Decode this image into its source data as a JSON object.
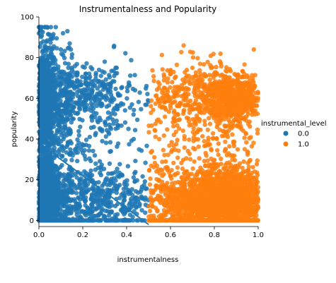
{
  "chart_data": {
    "type": "scatter",
    "title": "Instrumentalness and Popularity",
    "xlabel": "instrumentalness",
    "ylabel": "popularity",
    "xlim": [
      0,
      1
    ],
    "ylim": [
      -3,
      100
    ],
    "x_ticks": [
      0.0,
      0.2,
      0.4,
      0.6,
      0.8,
      1.0
    ],
    "x_tick_labels": [
      "0.0",
      "0.2",
      "0.4",
      "0.6",
      "0.8",
      "1.0"
    ],
    "y_ticks": [
      0,
      20,
      40,
      60,
      80,
      100
    ],
    "y_tick_labels": [
      "0",
      "20",
      "40",
      "60",
      "80",
      "100"
    ],
    "grid": false,
    "legend": {
      "title": "instrumental_level",
      "placement": "right",
      "entries": [
        "0.0",
        "1.0"
      ]
    },
    "colors": {
      "0.0": "#1f77b4",
      "1.0": "#ff7f0e"
    },
    "series": [
      {
        "name": "0.0",
        "x_range": [
          0,
          0.5
        ],
        "regression_line": {
          "x": [
            0.0,
            0.5
          ],
          "y": [
            38,
            -2
          ]
        },
        "clusters": [
          {
            "x_center": 0.02,
            "x_spread": 0.03,
            "y_center": 55,
            "y_spread": 17,
            "count": 900
          },
          {
            "x_center": 0.02,
            "x_spread": 0.03,
            "y_center": 10,
            "y_spread": 10,
            "count": 700
          },
          {
            "x_center": 0.2,
            "x_spread": 0.14,
            "y_center": 62,
            "y_spread": 8,
            "count": 420
          },
          {
            "x_center": 0.22,
            "x_spread": 0.15,
            "y_center": 10,
            "y_spread": 9,
            "count": 650
          },
          {
            "x_center": 0.2,
            "x_spread": 0.14,
            "y_center": 40,
            "y_spread": 10,
            "count": 120
          }
        ],
        "extra_points": [
          [
            0.0,
            95
          ],
          [
            0.0,
            92
          ],
          [
            0.13,
            93
          ],
          [
            0.05,
            85
          ],
          [
            0.1,
            84
          ],
          [
            0.15,
            80
          ],
          [
            0.3,
            78
          ],
          [
            0.35,
            75
          ],
          [
            0.02,
            88
          ]
        ]
      },
      {
        "name": "1.0",
        "x_range": [
          0.5,
          1.0
        ],
        "regression_line": null,
        "clusters": [
          {
            "x_center": 0.88,
            "x_spread": 0.07,
            "y_center": 60,
            "y_spread": 6,
            "count": 700
          },
          {
            "x_center": 0.85,
            "x_spread": 0.1,
            "y_center": 10,
            "y_spread": 8,
            "count": 1600
          },
          {
            "x_center": 0.65,
            "x_spread": 0.1,
            "y_center": 8,
            "y_spread": 8,
            "count": 500
          },
          {
            "x_center": 0.68,
            "x_spread": 0.1,
            "y_center": 62,
            "y_spread": 8,
            "count": 250
          },
          {
            "x_center": 0.75,
            "x_spread": 0.15,
            "y_center": 35,
            "y_spread": 12,
            "count": 200
          }
        ],
        "extra_points": [
          [
            0.66,
            86
          ],
          [
            0.98,
            84
          ],
          [
            0.62,
            70
          ],
          [
            0.7,
            75
          ]
        ]
      }
    ]
  }
}
